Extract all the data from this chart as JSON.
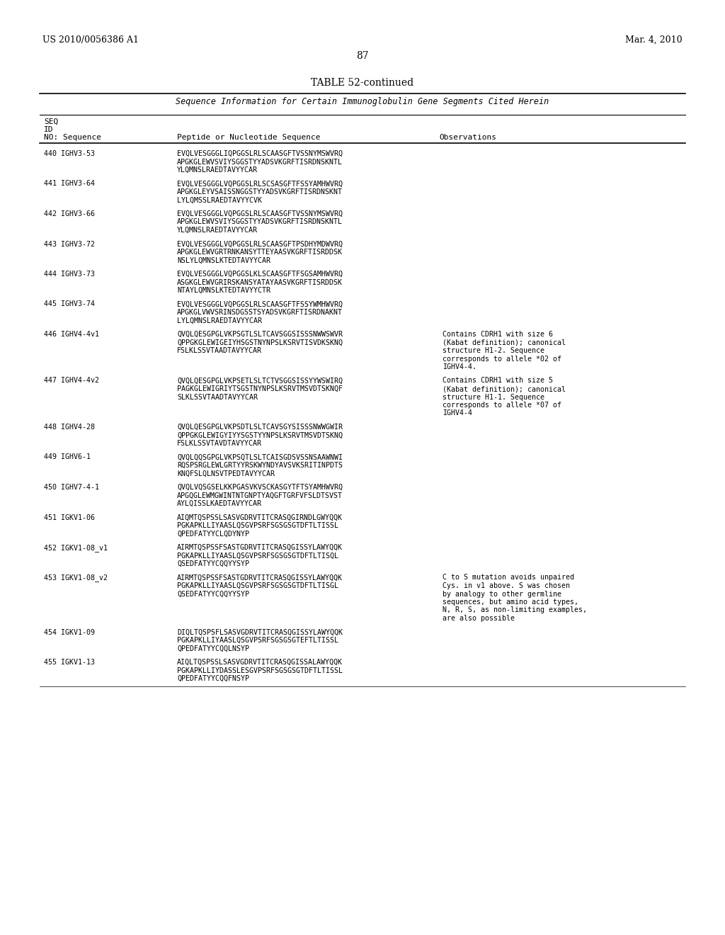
{
  "header_left": "US 2010/0056386 A1",
  "header_right": "Mar. 4, 2010",
  "page_number": "87",
  "table_title": "TABLE 52-continued",
  "table_subtitle": "Sequence Information for Certain Immunoglobulin Gene Segments Cited Herein",
  "col_headers": [
    "SEQ\nID\nNO: Sequence",
    "Peptide or Nucleotide Sequence",
    "Observations"
  ],
  "entries": [
    {
      "seq_id": "440 IGHV3-53",
      "sequence": "EVQLVESGGGLIQPGGSLRLSCAASGFTVSSNYMSWVRQ\nAPGKGLEWVSVIYSGGSTYYADSVKGRFTISRDNSKNTL\nYLQMNSLRAEDTAVYYCAR",
      "observations": ""
    },
    {
      "seq_id": "441 IGHV3-64",
      "sequence": "EVQLVESGGGLVQPGGSLRLSCSASGFTFSSYAMHWVRQ\nAPGKGLEYVSAISSNGGSTYYADSVKGRFTISRDNSKNT\nLYLQMSSLRAEDTAVYYCVK",
      "observations": ""
    },
    {
      "seq_id": "442 IGHV3-66",
      "sequence": "EVQLVESGGGLVQPGGSLRLSCAASGFTVSSNYMSWVRQ\nAPGKGLEWVSVIYSGGSTYYADSVKGRFTISRDNSKNTL\nYLQMNSLRAEDTAVYYCAR",
      "observations": ""
    },
    {
      "seq_id": "443 IGHV3-72",
      "sequence": "EVQLVESGGGLVQPGGSLRLSCAASGFTPSDHYMDWVRQ\nAPGKGLEWVGRTRNKANSYTTEYAASVKGRFTISRDDSK\nNSLYLQMNSLKTEDTAVYYCAR",
      "observations": ""
    },
    {
      "seq_id": "444 IGHV3-73",
      "sequence": "EVQLVESGGGLVQPGGSLKLSCAASGFTFSGSAMHWVRQ\nASGKGLEWVGRIRSKANSYATAYAASVKGRFTISRDDSK\nNTAYLQMNSLKTEDTAVYYCTR",
      "observations": ""
    },
    {
      "seq_id": "445 IGHV3-74",
      "sequence": "EVQLVESGGGLVQPGGSLRLSCAASGFTFSSYWMHWVRQ\nAPGKGLVWVSRINSDGSSTSYADSVKGRFTISRDNAKNT\nLYLQMNSLRAEDTAVYYCAR",
      "observations": ""
    },
    {
      "seq_id": "446 IGHV4-4v1",
      "sequence": "QVQLQESGPGLVKPSGTLSLTCAVSGGSISSSNWWSWVR\nQPPGKGLEWIGEIYHSGSTNYNPSLKSRVTISVDKSKNQ\nFSLKLSSVTAADTAVYYCAR",
      "observations": "Contains CDRH1 with size 6\n(Kabat definition); canonical\nstructure H1-2. Sequence\ncorresponds to allele *02 of\nIGHV4-4."
    },
    {
      "seq_id": "447 IGHV4-4v2",
      "sequence": "QVQLQESGPGLVKPSETLSLTCTVSGGSISSYYWSWIRQ\nPAGKGLEWIGRIYTSGSTNYNPSLKSRVTMSVDTSKNQF\nSLKLSSVTAADTAVYYCAR",
      "observations": "Contains CDRH1 with size 5\n(Kabat definition); canonical\nstructure H1-1. Sequence\ncorresponds to allele *07 of\nIGHV4-4"
    },
    {
      "seq_id": "448 IGHV4-28",
      "sequence": "QVQLQESGPGLVKPSDTLSLTCAVSGYSISSSNWWGWIR\nQPPGKGLEWIGYIYYSGSTYYNPSLKSRVTMSVDTSKNQ\nFSLKLSSVTAVDTAVYYCAR",
      "observations": ""
    },
    {
      "seq_id": "449 IGHV6-1",
      "sequence": "QVQLQQSGPGLVKPSQTLSLTCAISGDSVSSNSAAWNWI\nRQSPSRGLEWLGRTYYRSKWYNDYAVSVKSRITINPDTS\nKNQFSLQLNSVTPEDTAVYYCAR",
      "observations": ""
    },
    {
      "seq_id": "450 IGHV7-4-1",
      "sequence": "QVQLVQSGSELKKPGASVKVSCKASGYTFTSYAMHWVRQ\nAPGQGLEWMGWINTNTGNPTYAQGFTGRFVFSLDTSVST\nAYLQISSLKAEDTAVYYCAR",
      "observations": ""
    },
    {
      "seq_id": "451 IGKV1-06",
      "sequence": "AIQMTQSPSSLSASVGDRVTITCRASQGIRNDLGWYQQK\nPGKAPKLLIYAASLQSGVPSRFSGSGSGTDFTLTISSL\nQPEDFATYYCLQDYNYP",
      "observations": ""
    },
    {
      "seq_id": "452 IGKV1-08_v1",
      "sequence": "AIRMTQSPSSFSASTGDRVTITCRASQGISSYLAWYQQK\nPGKAPKLLIYAASLQSGVPSRFSGSGSGTDFTLTISQL\nQSEDFATYYCQQYYSYP",
      "observations": ""
    },
    {
      "seq_id": "453 IGKV1-08_v2",
      "sequence": "AIRMTQSPSSFSASTGDRVTITCRASQGISSYLAWYQQK\nPGKAPKLLIYAASLQSGVPSRFSGSGSGTDFTLTISGL\nQSEDFATYYCQQYYSYP",
      "observations": "C to S mutation avoids unpaired\nCys. in v1 above. S was chosen\nby analogy to other germline\nsequences, but amino acid types,\nN, R, S, as non-limiting examples,\nare also possible"
    },
    {
      "seq_id": "454 IGKV1-09",
      "sequence": "DIQLTQSPSFLSASVGDRVTITCRASQGISSYLAWYQQK\nPGKAPKLLIYAASLQSGVPSRFSGSGSGTEFTLTISSL\nQPEDFATYYCQQLNSYP",
      "observations": ""
    },
    {
      "seq_id": "455 IGKV1-13",
      "sequence": "AIQLTQSPSSLSASVGDRVTITCRASQGISSALAWYQQK\nPGKAPKLLIYDASSLESGVPSRFSGSGSGTDFTLTISSL\nQPEDFATYYCQQFNSYP",
      "observations": ""
    }
  ],
  "bg_color": "#ffffff",
  "text_color": "#000000",
  "font_family": "monospace"
}
